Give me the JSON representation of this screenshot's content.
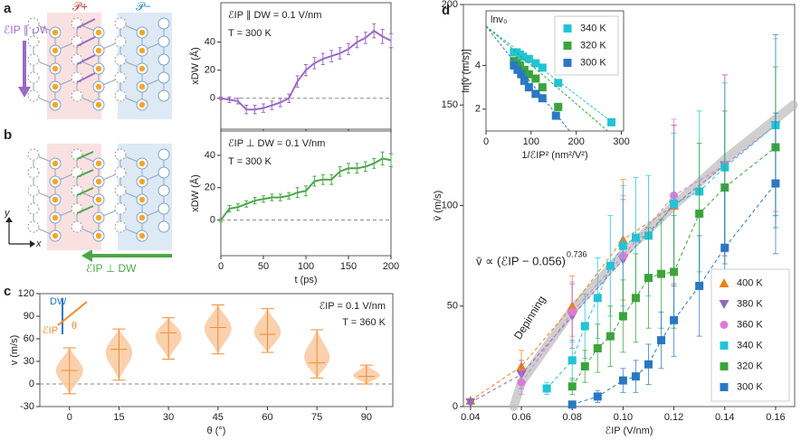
{
  "panel_labels": [
    "a",
    "b",
    "c",
    "d"
  ],
  "schematic": {
    "p_plus": "𝒫+",
    "p_minus": "𝒫−",
    "field_parallel": "ℰIP ∥ DW",
    "field_perp": "ℰIP ⊥ DW",
    "axis_y": "y",
    "axis_x": "x"
  },
  "chart_data": [
    {
      "type": "line",
      "color": "#9b69c6",
      "xlabel": "t (ps)",
      "ylabel": "xDW (Å)",
      "annotations": [
        "ℰIP ∥ DW = 0.1 V/nm",
        "T = 300 K"
      ],
      "x": [
        0,
        10,
        20,
        30,
        40,
        50,
        60,
        70,
        80,
        90,
        100,
        110,
        120,
        130,
        140,
        150,
        160,
        170,
        180,
        190,
        200
      ],
      "values": [
        0,
        -1,
        -2,
        -8,
        -8,
        -7,
        -5,
        -3,
        0,
        12,
        20,
        25,
        28,
        30,
        32,
        35,
        40,
        43,
        48,
        44,
        41
      ],
      "errors": [
        1,
        2,
        2,
        3,
        3,
        3,
        3,
        3,
        3,
        4,
        4,
        4,
        4,
        4,
        4,
        4,
        4,
        4,
        5,
        5,
        5
      ],
      "xlim": [
        0,
        200
      ],
      "xticks": [
        0,
        50,
        100,
        150,
        200
      ],
      "ylim": [
        -22,
        68
      ],
      "yticks": [
        0,
        20,
        40
      ],
      "reference_line": 0
    },
    {
      "type": "line",
      "color": "#4aa84a",
      "xlabel": "t (ps)",
      "ylabel": "xDW (Å)",
      "annotations": [
        "ℰIP ⊥ DW = 0.1 V/nm",
        "T = 300 K"
      ],
      "x": [
        0,
        10,
        20,
        30,
        40,
        50,
        60,
        70,
        80,
        90,
        100,
        110,
        120,
        130,
        140,
        150,
        160,
        170,
        180,
        190,
        200
      ],
      "values": [
        0,
        7,
        8,
        10,
        12,
        13,
        14,
        14,
        15,
        17,
        18,
        24,
        25,
        25,
        30,
        32,
        32,
        33,
        35,
        38,
        37
      ],
      "errors": [
        1,
        2,
        2,
        2,
        2,
        2,
        2,
        2,
        2,
        3,
        3,
        3,
        3,
        3,
        3,
        3,
        3,
        3,
        3,
        4,
        4
      ],
      "xlim": [
        0,
        200
      ],
      "xticks": [
        0,
        50,
        100,
        150,
        200
      ],
      "ylim": [
        -22,
        55
      ],
      "yticks": [
        0,
        20,
        40
      ],
      "reference_line": 0
    },
    {
      "type": "violin",
      "color": "#f28a2e",
      "fill": "#f9c9a0",
      "xlabel": "θ (°)",
      "ylabel": "v (m/s)",
      "annotations": [
        "ℰIP = 0.1 V/nm",
        "T = 360 K"
      ],
      "icon_labels": [
        "DW",
        "ℰIP",
        "θ"
      ],
      "x": [
        0,
        15,
        30,
        45,
        60,
        75,
        90
      ],
      "median": [
        18,
        46,
        68,
        75,
        66,
        28,
        10
      ],
      "min": [
        -13,
        5,
        33,
        40,
        42,
        8,
        0
      ],
      "max": [
        48,
        73,
        88,
        105,
        100,
        72,
        25
      ],
      "xlim": [
        -9,
        98
      ],
      "xticks": [
        0,
        15,
        30,
        45,
        60,
        75,
        90
      ],
      "ylim": [
        -30,
        120
      ],
      "yticks": [
        -30,
        0,
        30,
        60,
        90,
        120
      ],
      "reference_line": 0
    },
    {
      "type": "scatter",
      "xlabel": "ℰIP (V/nm)",
      "ylabel": "v̄ (m/s)",
      "legend": "lower right",
      "fit_label": "v̄ ∝ (ℰIP − 0.056)",
      "fit_exponent": 0.736,
      "fit_band_label": "Depinning",
      "fit_curve": {
        "x": [
          0.057,
          0.06,
          0.07,
          0.08,
          0.1,
          0.12,
          0.14,
          0.167
        ],
        "values": [
          0,
          12,
          30,
          48,
          76,
          100,
          123,
          150
        ]
      },
      "xlim": [
        0.0372,
        0.1675
      ],
      "xticks": [
        0.04,
        0.06,
        0.08,
        {
          "value": 0.1,
          "label": "0.10"
        },
        0.12,
        0.14,
        0.16
      ],
      "ylim": [
        0,
        200
      ],
      "yticks": [
        0,
        50,
        100,
        150,
        200
      ],
      "series": [
        {
          "name": "400 K",
          "color": "#f08019",
          "marker": "triangle-up",
          "x": [
            0.04,
            0.06,
            0.08,
            0.1,
            0.12
          ],
          "values": [
            3,
            20,
            50,
            83,
            100
          ],
          "errors": [
            1,
            8,
            15,
            30,
            40
          ]
        },
        {
          "name": "380 K",
          "color": "#8d6cc0",
          "marker": "triangle-down",
          "x": [
            0.04,
            0.06,
            0.08,
            0.1,
            0.12,
            0.14,
            0.16
          ],
          "values": [
            2,
            16,
            45,
            73,
            100,
            120,
            140
          ],
          "errors": [
            1,
            7,
            16,
            30,
            40,
            45,
            45
          ]
        },
        {
          "name": "360 K",
          "color": "#dd7bd4",
          "marker": "circle",
          "x": [
            0.06,
            0.08,
            0.1,
            0.12,
            0.14,
            0.16
          ],
          "values": [
            12,
            47,
            75,
            105,
            120,
            140
          ],
          "errors": [
            6,
            15,
            30,
            38,
            45,
            43
          ]
        },
        {
          "name": "340 K",
          "color": "#22c3d6",
          "marker": "square",
          "x": [
            0.07,
            0.08,
            0.085,
            0.09,
            0.095,
            0.1,
            0.105,
            0.11,
            0.12,
            0.13,
            0.14,
            0.16
          ],
          "values": [
            9,
            23,
            40,
            54,
            70,
            80,
            84,
            85,
            101,
            107,
            119,
            140
          ],
          "errors": [
            3,
            10,
            16,
            20,
            25,
            30,
            30,
            30,
            35,
            40,
            42,
            45
          ]
        },
        {
          "name": "320 K",
          "color": "#3aa53a",
          "marker": "square",
          "x": [
            0.08,
            0.085,
            0.09,
            0.095,
            0.1,
            0.105,
            0.11,
            0.115,
            0.12,
            0.13,
            0.14,
            0.16
          ],
          "values": [
            10,
            20,
            29,
            35,
            45,
            54,
            64,
            66,
            67,
            96,
            109,
            129
          ],
          "errors": [
            4,
            8,
            12,
            15,
            18,
            22,
            25,
            27,
            28,
            35,
            38,
            40
          ]
        },
        {
          "name": "300 K",
          "color": "#2a78c2",
          "marker": "square",
          "x": [
            0.08,
            0.09,
            0.1,
            0.105,
            0.11,
            0.115,
            0.12,
            0.13,
            0.14,
            0.16
          ],
          "values": [
            1,
            5,
            13,
            15,
            21,
            33,
            43,
            60,
            79,
            111
          ],
          "errors": [
            1,
            3,
            6,
            8,
            10,
            14,
            18,
            25,
            30,
            35
          ]
        }
      ]
    },
    {
      "type": "scatter",
      "xlabel": "1/ℰIP² (nm²/V²)",
      "ylabel": "ln[v̄ (m/s)]",
      "legend": "upper right",
      "annotations": [
        "lnv₀"
      ],
      "xlim": [
        0,
        305
      ],
      "xticks": [
        0,
        100,
        200,
        300
      ],
      "ylim": [
        1,
        6.5
      ],
      "yticks": [
        2,
        4
      ],
      "series": [
        {
          "name": "340 K",
          "color": "#22c3d6",
          "marker": "square",
          "x": [
            62,
            68,
            75,
            82,
            95,
            110,
            125,
            160,
            278
          ],
          "values": [
            4.6,
            4.6,
            4.5,
            4.4,
            4.3,
            4.1,
            3.9,
            3.2,
            1.4
          ],
          "fit_x": [
            0,
            280
          ],
          "fit_values": [
            5.8,
            1.4
          ]
        },
        {
          "name": "320 K",
          "color": "#3aa53a",
          "marker": "square",
          "x": [
            62,
            68,
            75,
            85,
            95,
            110,
            125,
            160
          ],
          "values": [
            4.2,
            4.1,
            4.0,
            3.8,
            3.6,
            3.4,
            3.0,
            2.1
          ],
          "fit_x": [
            0,
            270
          ],
          "fit_values": [
            5.8,
            1.0
          ]
        },
        {
          "name": "300 K",
          "color": "#2a78c2",
          "marker": "square",
          "x": [
            62,
            70,
            78,
            85,
            95,
            110,
            125,
            155
          ],
          "values": [
            4.0,
            3.8,
            3.6,
            3.3,
            3.0,
            2.7,
            2.5,
            1.7
          ],
          "fit_x": [
            0,
            185
          ],
          "fit_values": [
            5.8,
            1.0
          ]
        }
      ]
    }
  ]
}
